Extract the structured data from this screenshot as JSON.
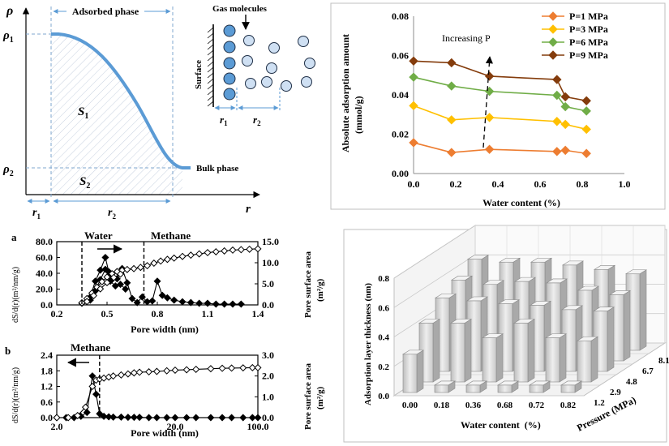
{
  "panel_a": {
    "y_axis": "ρ",
    "x_axis": "r",
    "rho1": "ρ",
    "rho1_sub": "1",
    "rho2": "ρ",
    "rho2_sub": "2",
    "adsorbed_phase": "Adsorbed phase",
    "bulk_phase": "Bulk phase",
    "s1": "S",
    "s1_sub": "1",
    "s2": "S",
    "s2_sub": "2",
    "r1": "r",
    "r1_sub": "1",
    "r2": "r",
    "r2_sub": "2",
    "inset": {
      "gas_molecules": "Gas molecules",
      "surface": "Surface",
      "r1": "r",
      "r1_sub": "1",
      "r2": "r",
      "r2_sub": "2"
    }
  },
  "panel_b": {
    "ylabel": "Absolute adsorption amount",
    "ylabel_units": "(mmol/g)",
    "xlabel": "Water content (%)",
    "annotation": "Increasing P",
    "colors": [
      "#ED7D31",
      "#FFC000",
      "#70AD47",
      "#843C0C"
    ]
  },
  "panel_c": {
    "label_a": "a",
    "label_b": "b",
    "a": {
      "water": "Water",
      "methane": "Methane",
      "xlabel": "Pore width (nm)",
      "ylabel_left": "dS/d(r)(m²/nm/g)",
      "ylabel_right": "Pore surface area",
      "ylabel_right_units": "(m²/g)"
    },
    "b": {
      "methane": "Methane",
      "xlabel": "Pore width (nm)",
      "ylabel_left": "dS/d(r)(m²/nm/g)",
      "ylabel_right": "Pore surface area",
      "ylabel_right_units": "(m²/g)"
    }
  },
  "panel_d": {
    "ylabel": "Adsorption layer thickness (nm)",
    "xlabel": "Water content",
    "xlabel_units": "(%)",
    "zlabel": "Pressure (MPa)"
  },
  "chart_data": [
    {
      "type": "line",
      "title": "",
      "xlabel": "Water content (%)",
      "ylabel": "Absolute adsorption amount (mmol/g)",
      "xlim": [
        0,
        1.0
      ],
      "ylim": [
        0,
        0.08
      ],
      "xticks": [
        "0.0",
        "0.2",
        "0.4",
        "0.6",
        "0.8",
        "1.0"
      ],
      "yticks": [
        "0.00",
        "0.02",
        "0.04",
        "0.06",
        "0.08"
      ],
      "grid": false,
      "legend": "top-right",
      "x": [
        0.0,
        0.18,
        0.36,
        0.68,
        0.72,
        0.82
      ],
      "series": [
        {
          "name": "P=1 MPa",
          "values": [
            0.0157,
            0.0107,
            0.0123,
            0.0112,
            0.0118,
            0.0102
          ]
        },
        {
          "name": "P=3 MPa",
          "values": [
            0.0345,
            0.0273,
            0.0285,
            0.0265,
            0.025,
            0.0225
          ]
        },
        {
          "name": "P=6 MPa",
          "values": [
            0.049,
            0.0445,
            0.0418,
            0.0398,
            0.034,
            0.0318
          ]
        },
        {
          "name": "P=9 MPa",
          "values": [
            0.0572,
            0.0563,
            0.0495,
            0.0478,
            0.039,
            0.037
          ]
        }
      ]
    },
    {
      "type": "line",
      "title": "",
      "xlabel": "Pore width (nm)",
      "ylabel": "dS/d(r)(m²/nm/g)",
      "y2label": "Pore surface area (m²/g)",
      "xlim": [
        0.2,
        1.4
      ],
      "ylim": [
        0,
        80
      ],
      "y2lim": [
        0,
        15
      ],
      "xticks": [
        "0.2",
        "0.5",
        "0.8",
        "1.1",
        "1.4"
      ],
      "yticks": [
        "0.0",
        "20.0",
        "40.0",
        "60.0",
        "80.0"
      ],
      "y2ticks": [
        "0.0",
        "5.0",
        "10.0",
        "15.0"
      ],
      "annotations": [
        "Water",
        "Methane"
      ],
      "series": [
        {
          "name": "",
          "axis": "left",
          "marker": "filled-diamond",
          "x": [
            0.35,
            0.4,
            0.43,
            0.46,
            0.49,
            0.51,
            0.53,
            0.56,
            0.59,
            0.62,
            0.65,
            0.68,
            0.71,
            0.74,
            0.77,
            0.8,
            0.83,
            0.86,
            0.9,
            0.95,
            1.0,
            1.05,
            1.1,
            1.15,
            1.2,
            1.25,
            1.3
          ],
          "values": [
            2,
            10,
            30,
            44,
            60,
            42,
            36,
            33,
            46,
            28,
            8,
            3,
            10,
            4,
            5,
            30,
            12,
            9,
            6,
            4,
            3,
            2,
            2,
            1,
            1,
            1,
            1
          ]
        },
        {
          "name": "",
          "axis": "left",
          "marker": "filled-diamond",
          "x": [
            0.4,
            0.43,
            0.46,
            0.49,
            0.52,
            0.55,
            0.58,
            0.61
          ],
          "values": [
            6,
            18,
            32,
            45,
            30,
            24,
            26,
            20
          ]
        },
        {
          "name": "",
          "axis": "right",
          "marker": "open-diamond",
          "x": [
            0.35,
            0.38,
            0.41,
            0.44,
            0.47,
            0.5,
            0.53,
            0.56,
            0.59,
            0.62,
            0.66,
            0.7,
            0.74,
            0.78,
            0.82,
            0.86,
            0.9,
            0.95,
            1.0,
            1.05,
            1.1,
            1.15,
            1.2,
            1.25,
            1.3,
            1.35,
            1.4
          ],
          "values": [
            0.5,
            1.5,
            2.8,
            4.2,
            5.5,
            6.6,
            7.4,
            7.9,
            8.2,
            8.4,
            8.6,
            8.9,
            9.3,
            9.9,
            10.4,
            10.8,
            11.1,
            11.5,
            11.8,
            12.1,
            12.4,
            12.6,
            12.8,
            13.0,
            13.1,
            13.2,
            13.3
          ]
        },
        {
          "name": "",
          "axis": "right",
          "marker": "open-diamond",
          "x": [
            0.38,
            0.42,
            0.46,
            0.5,
            0.54,
            0.58
          ],
          "values": [
            0.8,
            2.2,
            3.8,
            5.3,
            6.5,
            7.3
          ]
        }
      ]
    },
    {
      "type": "line",
      "title": "",
      "xlabel": "Pore width (nm)",
      "ylabel": "dS/d(r)(m²/nm/g)",
      "y2label": "Pore surface area (m²/g)",
      "xscale": "log",
      "xlim": [
        2.0,
        100.0
      ],
      "ylim": [
        0,
        2.4
      ],
      "y2lim": [
        0,
        3.0
      ],
      "xticks": [
        "2.0",
        "20.0",
        "100.0"
      ],
      "yticks": [
        "0.0",
        "0.6",
        "1.2",
        "1.8",
        "2.4"
      ],
      "y2ticks": [
        "0.0",
        "1.0",
        "2.0",
        "3.0"
      ],
      "annotations": [
        "Methane"
      ],
      "series": [
        {
          "name": "",
          "axis": "left",
          "marker": "filled-diamond",
          "x": [
            2.0,
            2.4,
            2.8,
            3.2,
            3.6,
            4.0,
            4.3,
            4.6,
            5.0,
            5.5,
            6.0,
            7,
            8,
            9,
            10,
            12,
            14,
            17,
            20,
            25,
            30,
            40,
            50,
            60,
            75,
            90,
            100
          ],
          "values": [
            0,
            0,
            0,
            0.05,
            0.2,
            1.6,
            0.9,
            0.15,
            0.05,
            0.03,
            0.02,
            0.02,
            0.01,
            0.01,
            0.01,
            0,
            0,
            0,
            0,
            0,
            0,
            0,
            0,
            0,
            0,
            0,
            0
          ]
        },
        {
          "name": "",
          "axis": "right",
          "marker": "open-diamond",
          "x": [
            2.0,
            2.5,
            3.0,
            3.5,
            4.0,
            4.3,
            4.6,
            5.0,
            5.5,
            6.0,
            7,
            8,
            9,
            10,
            12,
            14,
            17,
            20,
            25,
            30,
            40,
            50,
            60,
            75,
            90,
            100
          ],
          "values": [
            0,
            0,
            0.1,
            0.5,
            1.5,
            1.8,
            1.85,
            1.9,
            1.95,
            2.0,
            2.05,
            2.1,
            2.15,
            2.18,
            2.2,
            2.22,
            2.25,
            2.28,
            2.3,
            2.32,
            2.35,
            2.37,
            2.38,
            2.39,
            2.4,
            2.4
          ]
        }
      ]
    },
    {
      "type": "bar",
      "subtype": "3d",
      "title": "",
      "xlabel": "Water content (%)",
      "ylabel": "Adsorption layer thickness (nm)",
      "zlabel": "Pressure (MPa)",
      "categories": [
        "0.00",
        "0.18",
        "0.36",
        "0.68",
        "0.72",
        "0.82"
      ],
      "z_categories": [
        "1.2",
        "2.9",
        "4.8",
        "6.7",
        "8.1"
      ],
      "ylim": [
        0,
        0.8
      ],
      "yticks": [
        "0.0",
        "0.2",
        "0.4",
        "0.6",
        "0.8"
      ],
      "series": [
        {
          "name": "1.2",
          "values": [
            0.26,
            0.05,
            0.05,
            0.05,
            0.05,
            0.05
          ]
        },
        {
          "name": "2.9",
          "values": [
            0.4,
            0.4,
            0.3,
            0.4,
            0.3,
            0.28
          ]
        },
        {
          "name": "4.8",
          "values": [
            0.5,
            0.48,
            0.46,
            0.45,
            0.42,
            0.41
          ]
        },
        {
          "name": "6.7",
          "values": [
            0.55,
            0.52,
            0.54,
            0.53,
            0.48,
            0.45
          ]
        },
        {
          "name": "8.1",
          "values": [
            0.62,
            0.6,
            0.6,
            0.58,
            0.55,
            0.52
          ]
        }
      ]
    }
  ]
}
